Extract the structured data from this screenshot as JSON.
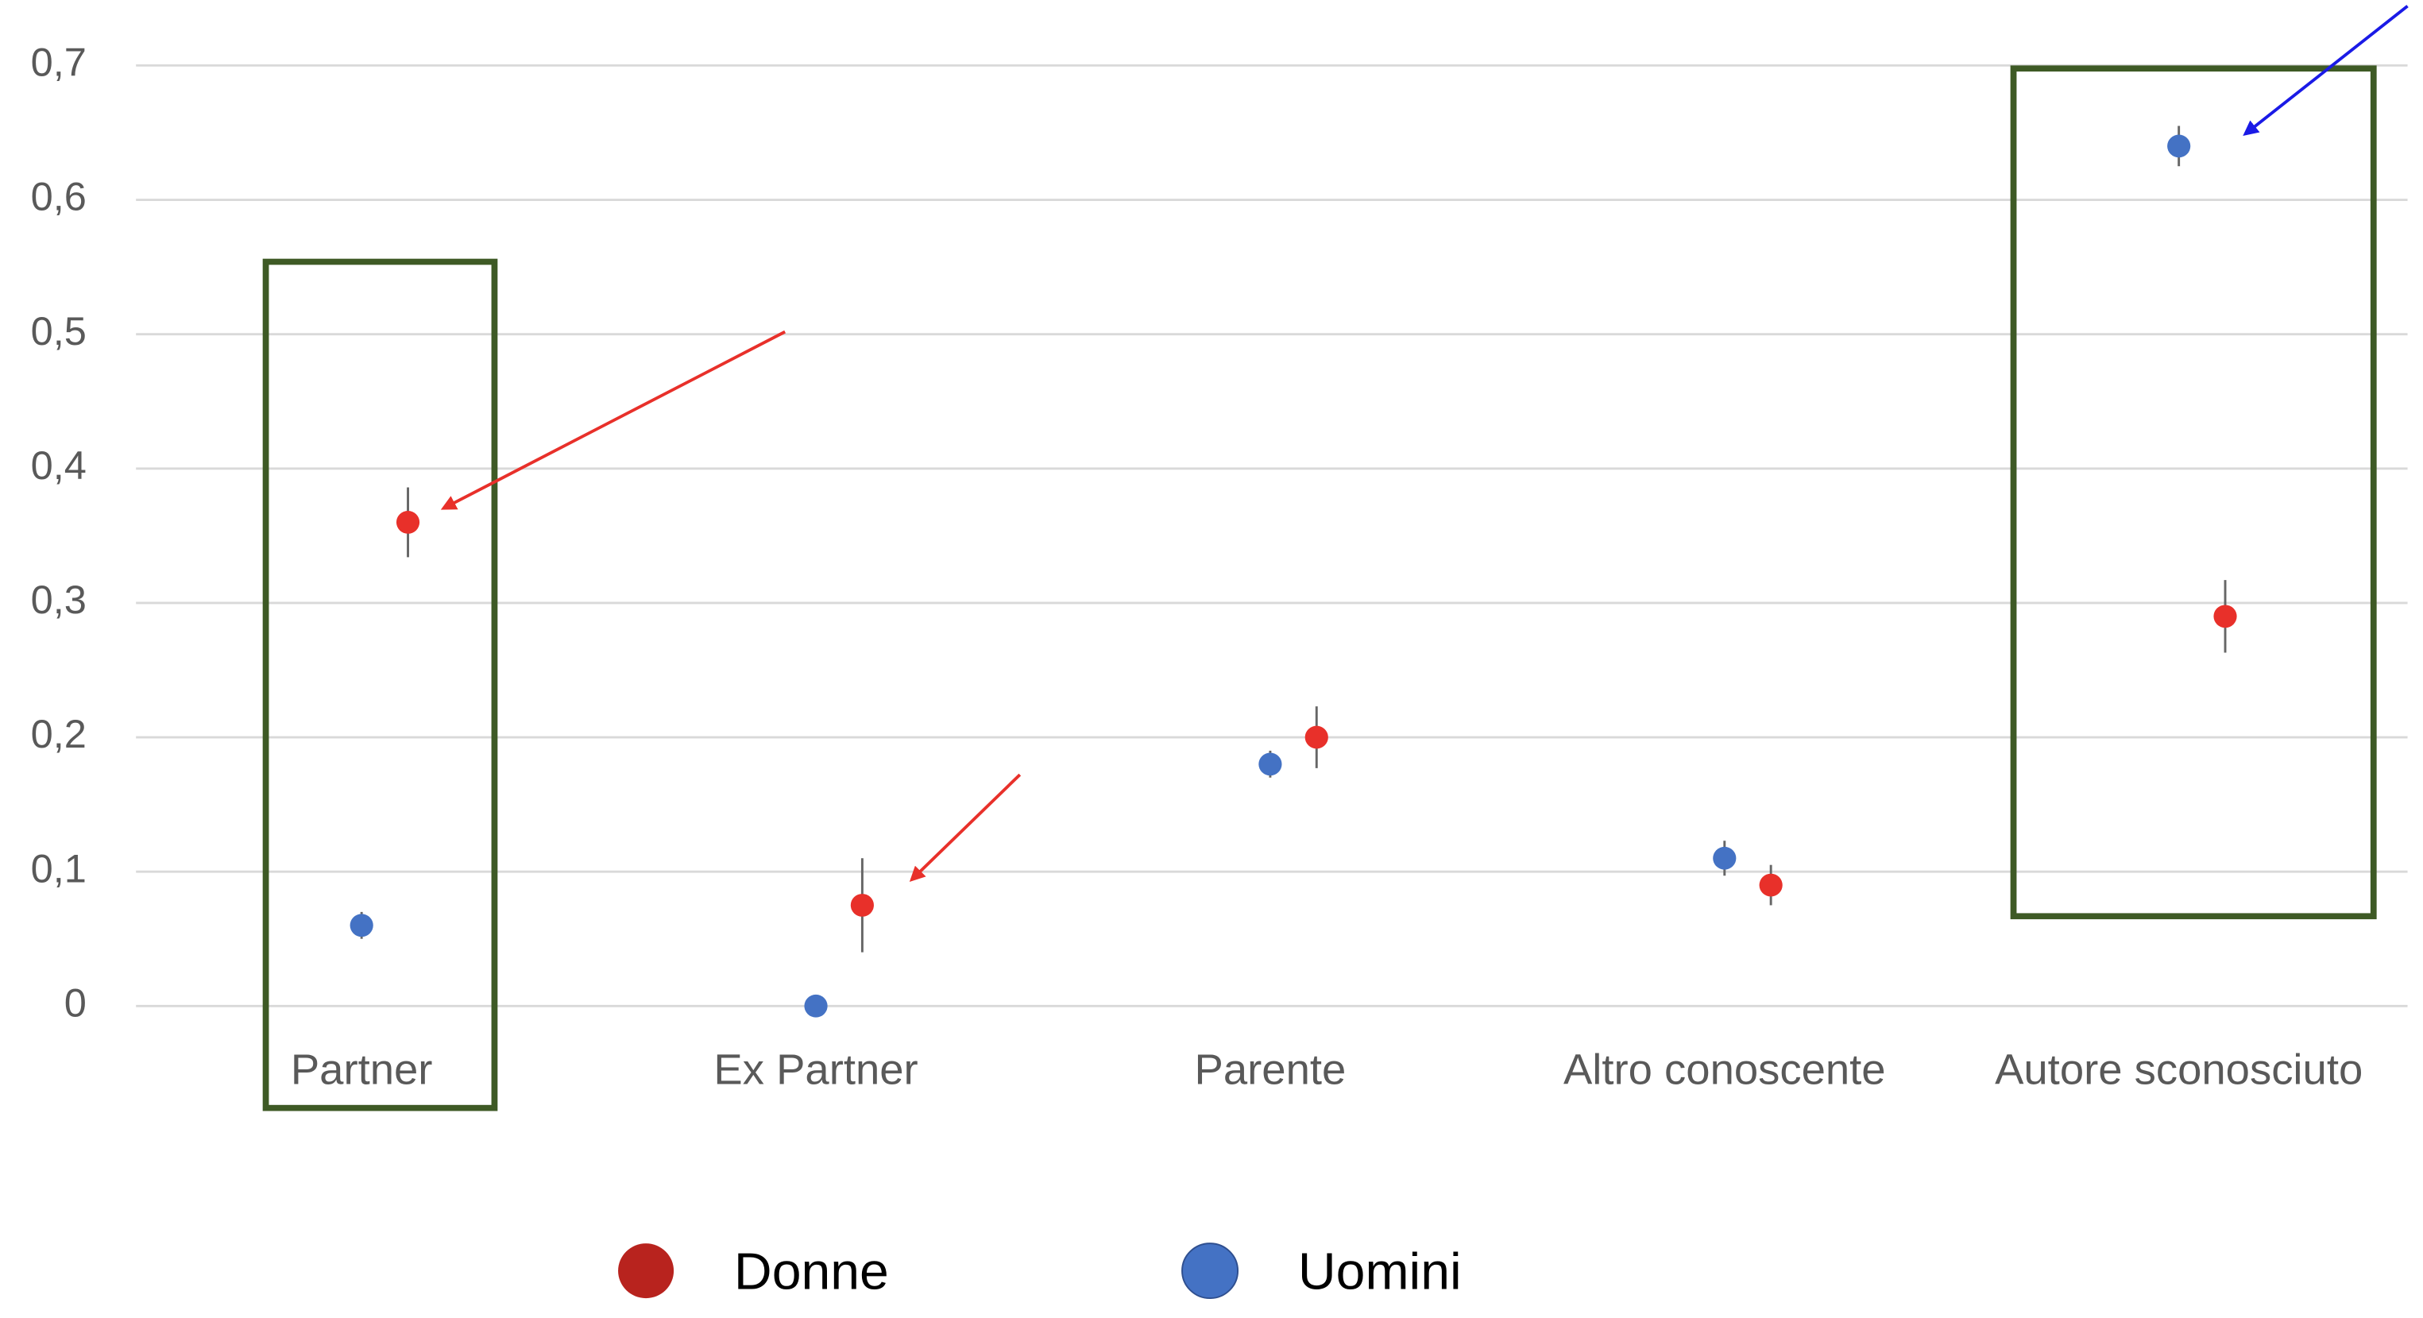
{
  "chart_data": {
    "type": "scatter",
    "categories": [
      "Partner",
      "Ex Partner",
      "Parente",
      "Altro conoscente",
      "Autore sconosciuto"
    ],
    "series": [
      {
        "name": "Donne",
        "color": "#e8302a",
        "values": [
          0.36,
          0.075,
          0.2,
          0.09,
          0.29
        ],
        "errors": [
          0.026,
          0.035,
          0.023,
          0.015,
          0.027
        ]
      },
      {
        "name": "Uomini",
        "color": "#4472c4",
        "values": [
          0.06,
          0.0,
          0.18,
          0.11,
          0.64
        ],
        "errors": [
          0.01,
          0.004,
          0.01,
          0.013,
          0.015
        ]
      }
    ],
    "ylim": [
      0,
      0.7
    ],
    "yticks": [
      0,
      {
        "value": 0.1,
        "label": "0,1"
      },
      {
        "value": 0.2,
        "label": "0,2"
      },
      {
        "value": 0.3,
        "label": "0,3"
      },
      {
        "value": 0.4,
        "label": "0,4"
      },
      {
        "value": 0.5,
        "label": "0,5"
      },
      {
        "value": 0.6,
        "label": "0,6"
      },
      {
        "value": 0.7,
        "label": "0,7"
      }
    ],
    "grid": true,
    "legend": "bottom"
  }
}
